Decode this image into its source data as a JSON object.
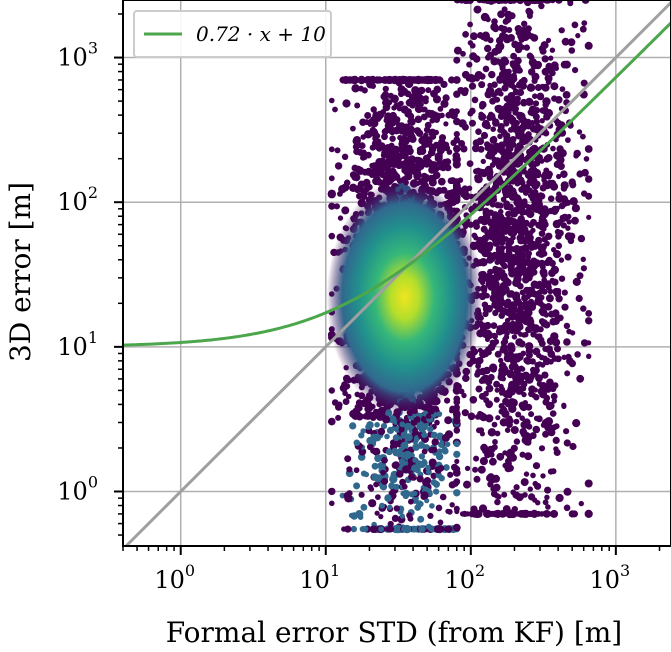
{
  "chart_data": {
    "type": "scatter",
    "title": "",
    "xlabel": "Formal error STD (from KF) [m]",
    "ylabel": "3D error [m]",
    "xscale": "log",
    "yscale": "log",
    "xlim": [
      0.4,
      2400
    ],
    "ylim": [
      0.42,
      2500
    ],
    "grid": true,
    "legend": {
      "placement": "top-left",
      "entries": [
        {
          "label": "0.72 · x + 10",
          "color": "#4ca64c"
        }
      ]
    },
    "x_ticks": [
      {
        "base": "10",
        "exp": "0",
        "value": 1
      },
      {
        "base": "10",
        "exp": "1",
        "value": 10
      },
      {
        "base": "10",
        "exp": "2",
        "value": 100
      },
      {
        "base": "10",
        "exp": "3",
        "value": 1000
      }
    ],
    "y_ticks": [
      {
        "base": "10",
        "exp": "0",
        "value": 1
      },
      {
        "base": "10",
        "exp": "1",
        "value": 10
      },
      {
        "base": "10",
        "exp": "2",
        "value": 100
      },
      {
        "base": "10",
        "exp": "3",
        "value": 1000
      }
    ],
    "series": [
      {
        "kind": "fit-line",
        "slope": 0.72,
        "intercept": 10,
        "color": "#4ca64c"
      },
      {
        "kind": "reference",
        "slope": 1,
        "intercept": 0,
        "color": "#a0a0a0"
      },
      {
        "kind": "density-scatter",
        "colormap": "viridis",
        "clusters": [
          {
            "x_center": 35,
            "y_center": 22,
            "x_range": [
              11,
              80
            ],
            "y_range": [
              0.55,
              700
            ]
          },
          {
            "x_center": 200,
            "y_center": 60,
            "x_range": [
              80,
              650
            ],
            "y_range": [
              0.7,
              2500
            ]
          }
        ]
      }
    ]
  }
}
